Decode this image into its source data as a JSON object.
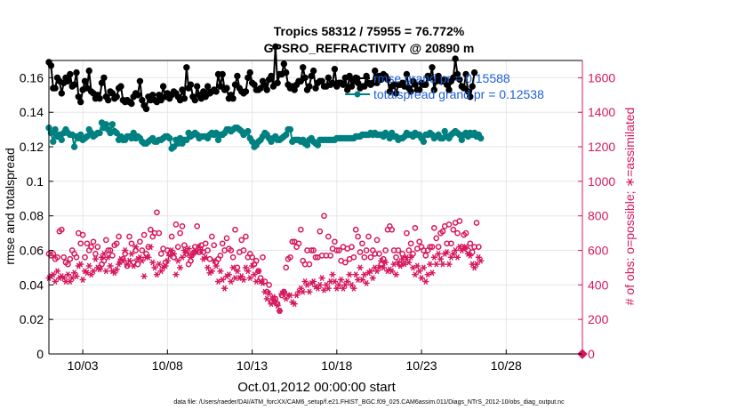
{
  "chart_data": {
    "type": "line",
    "title": "Tropics 58312 / 75955 = 76.772%",
    "subtitle": "GPSRO_REFRACTIVITY @ 20890 m",
    "xlabel": "Oct.01,2012 00:00:00 start",
    "ylabel_left": "rmse and totalspread",
    "ylabel_right": "# of obs: o=possible; ∗=assimilated",
    "x_ticks": [
      "10/03",
      "10/08",
      "10/13",
      "10/18",
      "10/23",
      "10/28"
    ],
    "x_tick_days": [
      3,
      8,
      13,
      18,
      23,
      28
    ],
    "xlim": [
      1,
      32.5
    ],
    "ylim_left": [
      0,
      0.17
    ],
    "ylim_right": [
      0,
      1700
    ],
    "y_ticks_left": [
      "0",
      "0.02",
      "0.04",
      "0.06",
      "0.08",
      "0.1",
      "0.12",
      "0.14",
      "0.16"
    ],
    "y_ticks_right": [
      "0",
      "200",
      "400",
      "600",
      "800",
      "1000",
      "1200",
      "1400",
      "1600"
    ],
    "grid": true,
    "legend_position": "top-right",
    "colors": {
      "rmse": "#000000",
      "spread": "#008080",
      "obs": "#d6185e",
      "legend_text": "#1f5fd6"
    },
    "series": [
      {
        "name": "rmse grand pr = 0.15588",
        "axis": "left",
        "marker": "filled-circle",
        "x_start": 1.0,
        "x_step": 0.125,
        "values": [
          0.169,
          0.167,
          0.154,
          0.154,
          0.16,
          0.158,
          0.151,
          0.157,
          0.16,
          0.158,
          0.162,
          0.155,
          0.156,
          0.163,
          0.149,
          0.146,
          0.153,
          0.158,
          0.154,
          0.164,
          0.152,
          0.151,
          0.148,
          0.15,
          0.148,
          0.157,
          0.16,
          0.149,
          0.147,
          0.152,
          0.151,
          0.148,
          0.149,
          0.154,
          0.155,
          0.147,
          0.146,
          0.147,
          0.146,
          0.145,
          0.149,
          0.151,
          0.15,
          0.158,
          0.147,
          0.144,
          0.142,
          0.149,
          0.147,
          0.15,
          0.147,
          0.146,
          0.15,
          0.147,
          0.155,
          0.149,
          0.151,
          0.148,
          0.15,
          0.152,
          0.151,
          0.149,
          0.147,
          0.153,
          0.148,
          0.166,
          0.154,
          0.156,
          0.149,
          0.147,
          0.155,
          0.15,
          0.148,
          0.152,
          0.149,
          0.155,
          0.151,
          0.152,
          0.153,
          0.152,
          0.162,
          0.155,
          0.162,
          0.153,
          0.154,
          0.148,
          0.15,
          0.148,
          0.156,
          0.161,
          0.154,
          0.152,
          0.151,
          0.152,
          0.16,
          0.163,
          0.157,
          0.156,
          0.153,
          0.153,
          0.154,
          0.158,
          0.156,
          0.153,
          0.159,
          0.161,
          0.155,
          0.178,
          0.157,
          0.162,
          0.162,
          0.168,
          0.163,
          0.156,
          0.154,
          0.155,
          0.153,
          0.156,
          0.158,
          0.158,
          0.166,
          0.16,
          0.153,
          0.155,
          0.161,
          0.164,
          0.154,
          0.157,
          0.158,
          0.158,
          0.155,
          0.155,
          0.16,
          0.156,
          0.157,
          0.165,
          0.155,
          0.157,
          0.157,
          0.156,
          0.16,
          0.153,
          0.161,
          0.155,
          0.158,
          0.16,
          0.157,
          0.154,
          0.155,
          0.155,
          0.161,
          0.157,
          0.156,
          0.157,
          0.164,
          0.157,
          0.161,
          0.159,
          0.162,
          0.161,
          0.159,
          0.152,
          0.155,
          0.156,
          0.151,
          0.156,
          0.156,
          0.157,
          0.155,
          0.162,
          0.154,
          0.152,
          0.158,
          0.156,
          0.153,
          0.153,
          0.157,
          0.156,
          0.156,
          0.161,
          0.16,
          0.166,
          0.153,
          0.158,
          0.161,
          0.158,
          0.158,
          0.159,
          0.156,
          0.153,
          0.158,
          0.16,
          0.171,
          0.162,
          0.159,
          0.155,
          0.154,
          0.162,
          0.152,
          0.149,
          0.155,
          0.163
        ]
      },
      {
        "name": "totalspread grand pr = 0.12538",
        "axis": "left",
        "marker": "filled-circle",
        "x_start": 1.0,
        "x_step": 0.125,
        "values": [
          0.131,
          0.128,
          0.123,
          0.13,
          0.126,
          0.127,
          0.124,
          0.128,
          0.13,
          0.128,
          0.127,
          0.127,
          0.12,
          0.126,
          0.125,
          0.127,
          0.124,
          0.125,
          0.126,
          0.13,
          0.128,
          0.126,
          0.127,
          0.128,
          0.128,
          0.134,
          0.131,
          0.133,
          0.13,
          0.128,
          0.133,
          0.129,
          0.128,
          0.124,
          0.126,
          0.124,
          0.124,
          0.126,
          0.126,
          0.125,
          0.128,
          0.125,
          0.126,
          0.125,
          0.123,
          0.122,
          0.122,
          0.123,
          0.124,
          0.125,
          0.123,
          0.123,
          0.124,
          0.124,
          0.125,
          0.126,
          0.126,
          0.125,
          0.119,
          0.12,
          0.124,
          0.122,
          0.125,
          0.122,
          0.124,
          0.124,
          0.128,
          0.126,
          0.127,
          0.128,
          0.127,
          0.125,
          0.126,
          0.126,
          0.126,
          0.125,
          0.127,
          0.128,
          0.127,
          0.128,
          0.124,
          0.127,
          0.127,
          0.128,
          0.13,
          0.13,
          0.129,
          0.13,
          0.131,
          0.131,
          0.13,
          0.129,
          0.127,
          0.128,
          0.129,
          0.125,
          0.123,
          0.12,
          0.121,
          0.123,
          0.124,
          0.126,
          0.128,
          0.127,
          0.125,
          0.123,
          0.125,
          0.126,
          0.124,
          0.124,
          0.125,
          0.126,
          0.127,
          0.13,
          0.13,
          0.123,
          0.124,
          0.124,
          0.124,
          0.123,
          0.124,
          0.122,
          0.121,
          0.124,
          0.125,
          0.123,
          0.122,
          0.121,
          0.124,
          0.124,
          0.124,
          0.124,
          0.124,
          0.124,
          0.124,
          0.124,
          0.125,
          0.125,
          0.125,
          0.125,
          0.125,
          0.125,
          0.125,
          0.125,
          0.125,
          0.126,
          0.126,
          0.126,
          0.127,
          0.127,
          0.127,
          0.127,
          0.128,
          0.127,
          0.128,
          0.127,
          0.127,
          0.127,
          0.126,
          0.128,
          0.127,
          0.125,
          0.128,
          0.126,
          0.126,
          0.124,
          0.125,
          0.125,
          0.126,
          0.128,
          0.127,
          0.127,
          0.126,
          0.128,
          0.127,
          0.127,
          0.125,
          0.123,
          0.127,
          0.127,
          0.128,
          0.127,
          0.125,
          0.126,
          0.127,
          0.125,
          0.125,
          0.129,
          0.126,
          0.125,
          0.127,
          0.128,
          0.129,
          0.128,
          0.127,
          0.124,
          0.127,
          0.128,
          0.126,
          0.128,
          0.127,
          0.128,
          0.126,
          0.127,
          0.125
        ]
      },
      {
        "name": "obs possible",
        "axis": "right",
        "marker": "open-circle",
        "x_start": 1.0,
        "x_step": 0.125,
        "values": [
          580,
          570,
          580,
          550,
          560,
          710,
          720,
          560,
          530,
          520,
          550,
          600,
          580,
          560,
          700,
          640,
          690,
          560,
          640,
          600,
          620,
          650,
          580,
          620,
          500,
          520,
          540,
          660,
          600,
          600,
          570,
          630,
          640,
          680,
          540,
          550,
          580,
          510,
          680,
          640,
          530,
          600,
          520,
          650,
          600,
          690,
          580,
          620,
          720,
          680,
          700,
          820,
          700,
          580,
          610,
          530,
          600,
          580,
          680,
          560,
          750,
          620,
          700,
          740,
          630,
          580,
          520,
          540,
          580,
          620,
          740,
          590,
          630,
          590,
          640,
          600,
          550,
          680,
          630,
          530,
          550,
          570,
          640,
          600,
          670,
          610,
          600,
          560,
          720,
          500,
          590,
          660,
          600,
          680,
          560,
          580,
          560,
          520,
          540,
          480,
          440,
          560,
          420,
          360,
          400,
          300,
          320,
          320,
          290,
          250,
          340,
          360,
          500,
          550,
          560,
          650,
          650,
          620,
          640,
          720,
          540,
          520,
          600,
          520,
          600,
          600,
          560,
          560,
          710,
          570,
          800,
          570,
          680,
          570,
          610,
          650,
          600,
          600,
          540,
          620,
          530,
          610,
          550,
          620,
          560,
          720,
          680,
          590,
          640,
          560,
          600,
          680,
          560,
          600,
          580,
          660,
          580,
          520,
          550,
          600,
          720,
          740,
          720,
          600,
          560,
          600,
          520,
          580,
          550,
          700,
          600,
          640,
          580,
          730,
          610,
          650,
          620,
          600,
          570,
          600,
          620,
          620,
          730,
          670,
          620,
          700,
          710,
          740,
          640,
          750,
          640,
          720,
          760,
          700,
          770,
          620,
          690,
          700,
          600,
          640,
          590,
          620,
          760,
          620
        ]
      },
      {
        "name": "obs assimilated",
        "axis": "right",
        "marker": "asterisk",
        "x_start": 1.0,
        "x_step": 0.125,
        "values": [
          440,
          450,
          460,
          420,
          480,
          440,
          450,
          440,
          420,
          460,
          420,
          440,
          470,
          450,
          510,
          520,
          430,
          480,
          470,
          510,
          460,
          480,
          550,
          500,
          490,
          560,
          580,
          480,
          560,
          510,
          480,
          470,
          490,
          520,
          550,
          540,
          600,
          520,
          540,
          580,
          510,
          620,
          550,
          560,
          540,
          450,
          560,
          560,
          620,
          530,
          500,
          460,
          520,
          480,
          500,
          510,
          540,
          570,
          600,
          580,
          460,
          540,
          500,
          560,
          600,
          590,
          610,
          560,
          580,
          600,
          590,
          620,
          600,
          550,
          560,
          500,
          470,
          480,
          540,
          510,
          420,
          480,
          430,
          380,
          450,
          460,
          420,
          500,
          440,
          480,
          440,
          450,
          430,
          500,
          480,
          440,
          510,
          460,
          420,
          480,
          420,
          410,
          360,
          320,
          350,
          290,
          330,
          300,
          280,
          250,
          350,
          360,
          320,
          340,
          340,
          300,
          290,
          340,
          360,
          380,
          360,
          420,
          400,
          360,
          410,
          420,
          390,
          380,
          400,
          440,
          370,
          400,
          380,
          420,
          460,
          420,
          380,
          400,
          430,
          380,
          400,
          420,
          460,
          400,
          380,
          460,
          430,
          500,
          430,
          460,
          410,
          470,
          480,
          440,
          500,
          480,
          500,
          540,
          500,
          530,
          480,
          490,
          480,
          520,
          460,
          530,
          510,
          550,
          520,
          560,
          530,
          560,
          500,
          460,
          510,
          480,
          440,
          500,
          420,
          460,
          520,
          470,
          560,
          520,
          580,
          550,
          520,
          580,
          590,
          520,
          560,
          580,
          600,
          560,
          620,
          600,
          610,
          620,
          580,
          570,
          520,
          500,
          520,
          560,
          540
        ]
      },
      {
        "name": "obs possible (final)",
        "axis": "right",
        "marker": "filled-diamond",
        "points": [
          [
            32.5,
            0
          ]
        ]
      }
    ]
  },
  "footer": "data file: /Users/raeder/DAI/ATM_forcXX/CAM6_setup/f.e21.FHIST_BGC.f09_025.CAM6assim.011/Diags_NTrS_2012-10/obs_diag_output.nc"
}
